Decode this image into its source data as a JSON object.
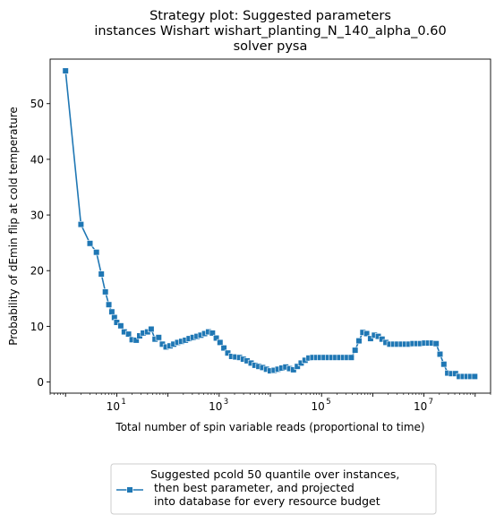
{
  "chart_data": {
    "type": "line",
    "title": [
      "Strategy plot: Suggested parameters",
      "instances Wishart wishart_planting_N_140_alpha_0.60",
      "solver pysa"
    ],
    "xlabel": "Total number of spin variable reads (proportional to time)",
    "ylabel": "Probability of dEmin flip at cold temperature",
    "xscale": "log",
    "xlim": [
      0.5,
      200000000
    ],
    "ylim": [
      -2,
      58
    ],
    "yticks": [
      0,
      10,
      20,
      30,
      40,
      50
    ],
    "xticks": [
      {
        "value": 10,
        "base": "10",
        "exp": "1"
      },
      {
        "value": 1000,
        "base": "10",
        "exp": "3"
      },
      {
        "value": 100000,
        "base": "10",
        "exp": "5"
      },
      {
        "value": 10000000,
        "base": "10",
        "exp": "7"
      }
    ],
    "grid": false,
    "legend_position": "below-center",
    "series": [
      {
        "name": "Suggested pcold 50 quantile over instances,\n  then best parameter, and projected\n into database for every resource budget",
        "color": "#1f77b4",
        "marker": "square",
        "x": [
          1,
          2,
          3,
          4,
          5,
          6,
          7,
          8,
          9,
          10,
          12,
          14,
          17,
          20,
          24,
          28,
          33,
          40,
          47,
          56,
          66,
          78,
          92,
          110,
          130,
          155,
          185,
          220,
          260,
          310,
          370,
          440,
          520,
          620,
          740,
          880,
          1040,
          1240,
          1480,
          1760,
          2100,
          2500,
          2970,
          3530,
          4200,
          5000,
          5950,
          7080,
          8420,
          10000,
          11900,
          14100,
          16800,
          20000,
          23800,
          28300,
          33700,
          40000,
          47600,
          56600,
          67300,
          80000,
          95200,
          113000,
          135000,
          160000,
          190000,
          226000,
          269000,
          320000,
          381000,
          453000,
          538000,
          640000,
          762000,
          906000,
          1080000,
          1280000,
          1520000,
          1810000,
          2150000,
          2560000,
          3050000,
          3630000,
          4320000,
          5140000,
          6110000,
          7270000,
          8650000,
          10300000,
          12200000,
          14500000,
          17300000,
          20600000,
          24500000,
          29100000,
          34600000,
          41200000,
          49000000,
          58300000,
          69300000,
          82400000,
          98000000
        ],
        "y": [
          55.9,
          28.3,
          24.9,
          23.3,
          19.4,
          16.2,
          13.9,
          12.6,
          11.6,
          10.7,
          10.1,
          9.0,
          8.6,
          7.6,
          7.5,
          8.3,
          8.8,
          9.0,
          9.5,
          7.7,
          8.0,
          6.8,
          6.3,
          6.5,
          6.8,
          7.1,
          7.3,
          7.5,
          7.8,
          8.0,
          8.2,
          8.4,
          8.7,
          9.0,
          8.8,
          7.9,
          7.1,
          6.1,
          5.2,
          4.6,
          4.5,
          4.4,
          4.1,
          3.8,
          3.4,
          3.0,
          2.8,
          2.6,
          2.3,
          2.0,
          2.1,
          2.3,
          2.5,
          2.7,
          2.4,
          2.2,
          2.8,
          3.4,
          3.9,
          4.3,
          4.4,
          4.4,
          4.4,
          4.4,
          4.4,
          4.4,
          4.4,
          4.4,
          4.4,
          4.4,
          4.4,
          5.7,
          7.4,
          8.9,
          8.7,
          7.8,
          8.4,
          8.2,
          7.7,
          7.1,
          6.8,
          6.8,
          6.8,
          6.8,
          6.8,
          6.8,
          6.9,
          6.9,
          6.9,
          7.0,
          7.0,
          7.0,
          6.9,
          5.0,
          3.2,
          1.6,
          1.5,
          1.5,
          1.0,
          1.0,
          1.0,
          1.0,
          1.0
        ]
      }
    ]
  }
}
